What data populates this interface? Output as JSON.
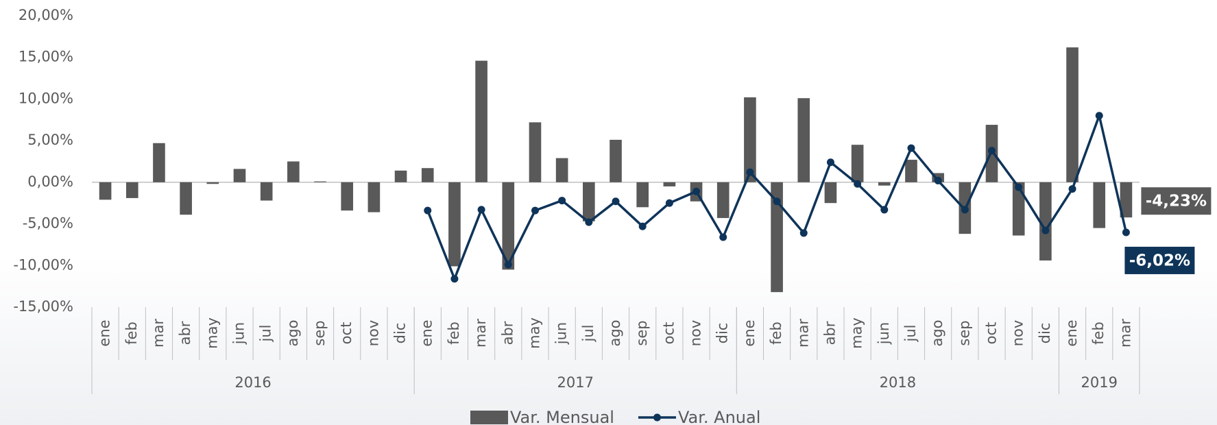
{
  "chart_data": {
    "type": "bar",
    "categories": [
      "ene",
      "feb",
      "mar",
      "abr",
      "may",
      "jun",
      "jul",
      "ago",
      "sep",
      "oct",
      "nov",
      "dic",
      "ene",
      "feb",
      "mar",
      "abr",
      "may",
      "jun",
      "jul",
      "ago",
      "sep",
      "oct",
      "nov",
      "dic",
      "ene",
      "feb",
      "mar",
      "abr",
      "may",
      "jun",
      "jul",
      "ago",
      "sep",
      "oct",
      "nov",
      "dic",
      "ene",
      "feb",
      "mar"
    ],
    "groups": [
      {
        "label": "2016",
        "span": 12
      },
      {
        "label": "2017",
        "span": 12
      },
      {
        "label": "2018",
        "span": 12
      },
      {
        "label": "2019",
        "span": 3
      }
    ],
    "series": [
      {
        "name": "Var. Mensual",
        "type": "bar",
        "color": "#595959",
        "values": [
          -2.1,
          -1.9,
          4.7,
          -3.9,
          -0.2,
          1.6,
          -2.2,
          2.5,
          0.1,
          -3.4,
          -3.6,
          1.4,
          1.7,
          -10.1,
          14.6,
          -10.5,
          7.2,
          2.9,
          -4.7,
          5.1,
          -3.0,
          -0.5,
          -2.3,
          -4.3,
          10.2,
          -13.2,
          10.1,
          -2.5,
          4.5,
          -0.4,
          2.7,
          1.1,
          -6.2,
          6.9,
          -6.4,
          -9.4,
          16.2,
          -5.5,
          -4.23
        ],
        "value_labels": [
          null,
          null,
          null,
          null,
          null,
          null,
          null,
          null,
          null,
          null,
          null,
          null,
          null,
          null,
          null,
          null,
          null,
          null,
          null,
          null,
          null,
          null,
          null,
          null,
          null,
          null,
          null,
          null,
          null,
          null,
          null,
          null,
          null,
          null,
          null,
          null,
          null,
          null,
          "-4,23%"
        ]
      },
      {
        "name": "Var. Anual",
        "type": "line",
        "color": "#0f3459",
        "values": [
          null,
          null,
          null,
          null,
          null,
          null,
          null,
          null,
          null,
          null,
          null,
          null,
          -3.4,
          -11.6,
          -3.3,
          -9.9,
          -3.4,
          -2.2,
          -4.8,
          -2.3,
          -5.3,
          -2.5,
          -1.1,
          -6.6,
          1.2,
          -2.3,
          -6.1,
          2.4,
          -0.2,
          -3.3,
          4.1,
          0.2,
          -3.3,
          3.8,
          -0.6,
          -5.8,
          -0.8,
          8.0,
          -6.02
        ],
        "value_labels": [
          null,
          null,
          null,
          null,
          null,
          null,
          null,
          null,
          null,
          null,
          null,
          null,
          null,
          null,
          null,
          null,
          null,
          null,
          null,
          null,
          null,
          null,
          null,
          null,
          null,
          null,
          null,
          null,
          null,
          null,
          null,
          null,
          null,
          null,
          null,
          null,
          null,
          null,
          "-6,02%"
        ]
      }
    ],
    "ylim": [
      -15,
      20
    ],
    "yticks": [
      {
        "value": -15,
        "label": "-15,00%"
      },
      {
        "value": -10,
        "label": "-10,00%"
      },
      {
        "value": -5,
        "label": "-5,00%"
      },
      {
        "value": 0,
        "label": "0,00%"
      },
      {
        "value": 5,
        "label": "5,00%"
      },
      {
        "value": 10,
        "label": "10,00%"
      },
      {
        "value": 15,
        "label": "15,00%"
      },
      {
        "value": 20,
        "label": "20,00%"
      }
    ],
    "legend": "bottom"
  }
}
